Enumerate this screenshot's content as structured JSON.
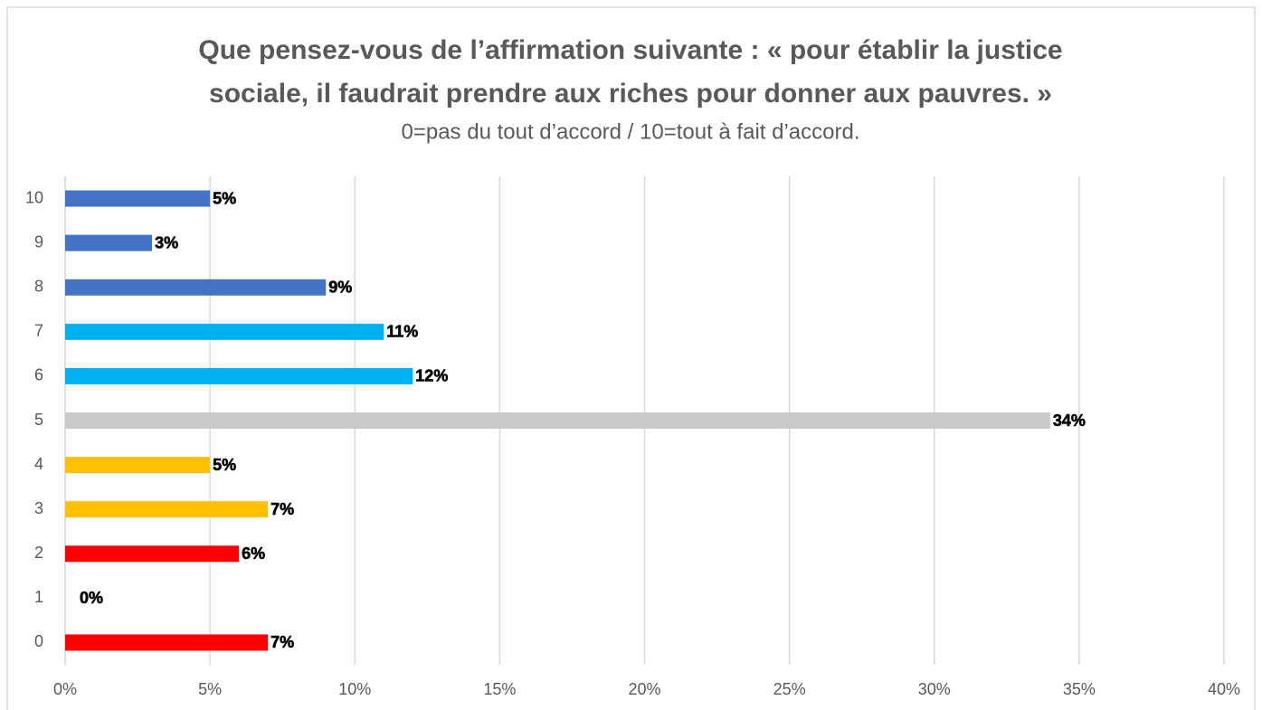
{
  "chart_data": {
    "type": "barh",
    "title": [
      "Que pensez-vous de l’affirmation suivante : « pour établir la justice",
      "sociale, il faudrait prendre aux riches pour donner aux pauvres. »"
    ],
    "subtitle": "0=pas du tout d’accord / 10=tout à fait d’accord.",
    "categories": [
      "0",
      "1",
      "2",
      "3",
      "4",
      "5",
      "6",
      "7",
      "8",
      "9",
      "10"
    ],
    "values": [
      7,
      0,
      6,
      7,
      5,
      34,
      12,
      11,
      9,
      3,
      5
    ],
    "value_labels": [
      "7%",
      "0%",
      "6%",
      "7%",
      "5%",
      "34%",
      "12%",
      "11%",
      "9%",
      "3%",
      "5%"
    ],
    "colors": [
      "#ff0000",
      "#ff0000",
      "#ff0000",
      "#ffc000",
      "#ffc000",
      "#c9c9c9",
      "#00b0f0",
      "#00b0f0",
      "#4472c4",
      "#4472c4",
      "#4472c4"
    ],
    "xlim": [
      0,
      40
    ],
    "xticks": [
      {
        "value": 0,
        "label": "0%"
      },
      {
        "value": 5,
        "label": "5%"
      },
      {
        "value": 10,
        "label": "10%"
      },
      {
        "value": 15,
        "label": "15%"
      },
      {
        "value": 20,
        "label": "20%"
      },
      {
        "value": 25,
        "label": "25%"
      },
      {
        "value": 30,
        "label": "30%"
      },
      {
        "value": 35,
        "label": "35%"
      },
      {
        "value": 40,
        "label": "40%"
      }
    ],
    "grid": true
  }
}
